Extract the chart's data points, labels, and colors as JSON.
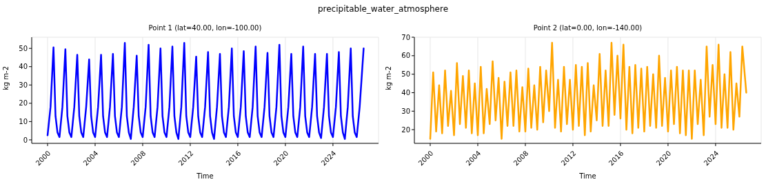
{
  "chart_data": [
    {
      "type": "line",
      "title": "Point 1 (lat=40.00, lon=-100.00)",
      "annotations": [
        "precipitable_water_atmosphere"
      ],
      "xlabel": "Time",
      "ylabel": "kg m-2",
      "grid": true,
      "marker": "none",
      "line_style": "solid",
      "xlim": [
        "1998-09",
        "2027-11"
      ],
      "xticks": [
        "2000",
        "2004",
        "2008",
        "2012",
        "2016",
        "2020",
        "2024"
      ],
      "ylim": [
        -1.9,
        56.1
      ],
      "yticks": [
        0,
        10,
        20,
        30,
        40,
        50
      ],
      "x": [
        "2000-01",
        "2000-04",
        "2000-07",
        "2000-09",
        "2000-11",
        "2001-01",
        "2001-04",
        "2001-07",
        "2001-09",
        "2001-11",
        "2002-01",
        "2002-04",
        "2002-07",
        "2002-09",
        "2002-11",
        "2003-01",
        "2003-04",
        "2003-07",
        "2003-09",
        "2003-11",
        "2004-01",
        "2004-04",
        "2004-07",
        "2004-09",
        "2004-11",
        "2005-01",
        "2005-04",
        "2005-07",
        "2005-09",
        "2005-11",
        "2006-01",
        "2006-04",
        "2006-07",
        "2006-09",
        "2006-11",
        "2007-01",
        "2007-04",
        "2007-07",
        "2007-09",
        "2007-11",
        "2008-01",
        "2008-04",
        "2008-07",
        "2008-09",
        "2008-11",
        "2009-01",
        "2009-04",
        "2009-07",
        "2009-09",
        "2009-11",
        "2010-01",
        "2010-04",
        "2010-07",
        "2010-09",
        "2010-11",
        "2011-01",
        "2011-04",
        "2011-07",
        "2011-09",
        "2011-11",
        "2012-01",
        "2012-04",
        "2012-07",
        "2012-09",
        "2012-11",
        "2013-01",
        "2013-04",
        "2013-07",
        "2013-09",
        "2013-11",
        "2014-01",
        "2014-04",
        "2014-07",
        "2014-09",
        "2014-11",
        "2015-01",
        "2015-04",
        "2015-07",
        "2015-09",
        "2015-11",
        "2016-01",
        "2016-04",
        "2016-07",
        "2016-09",
        "2016-11",
        "2017-01",
        "2017-04",
        "2017-07",
        "2017-09",
        "2017-11",
        "2018-01",
        "2018-04",
        "2018-07",
        "2018-09",
        "2018-11",
        "2019-01",
        "2019-04",
        "2019-07",
        "2019-09",
        "2019-11",
        "2020-01",
        "2020-04",
        "2020-07",
        "2020-09",
        "2020-11",
        "2021-01",
        "2021-04",
        "2021-07",
        "2021-09",
        "2021-11",
        "2022-01",
        "2022-04",
        "2022-07",
        "2022-09",
        "2022-11",
        "2023-01",
        "2023-04",
        "2023-07",
        "2023-09",
        "2023-11",
        "2024-01",
        "2024-04",
        "2024-07",
        "2024-09",
        "2024-11",
        "2025-01",
        "2025-04",
        "2025-07",
        "2025-09",
        "2025-11",
        "2026-01",
        "2026-04",
        "2026-08"
      ],
      "series": [
        {
          "color": "#0000ff",
          "values": [
            2.5,
            18,
            50.5,
            13,
            4,
            1.5,
            18,
            49.5,
            13,
            4,
            1.5,
            18,
            46.5,
            13,
            4,
            1.5,
            18,
            44,
            13,
            4,
            1.5,
            18,
            46.5,
            13,
            4,
            1.5,
            18,
            47,
            13,
            4,
            1.5,
            18,
            53,
            13,
            4,
            0.5,
            18,
            46,
            13,
            4,
            1.5,
            18,
            52,
            13,
            4,
            1.5,
            18,
            50,
            13,
            4,
            1.5,
            18,
            51,
            13,
            4,
            0.5,
            18,
            53,
            13,
            4,
            1.5,
            18,
            45.5,
            13,
            4,
            1.5,
            18,
            48,
            13,
            4,
            0.5,
            18,
            47,
            13,
            4,
            1.5,
            18,
            50,
            13,
            4,
            1.5,
            18,
            48.5,
            13,
            4,
            1.5,
            18,
            51,
            13,
            4,
            1.5,
            18,
            47.5,
            13,
            4,
            1.5,
            18,
            52,
            13,
            4,
            1.5,
            18,
            47,
            13,
            4,
            1.5,
            18,
            51,
            13,
            4,
            1.5,
            18,
            47,
            13,
            4,
            1,
            18,
            47,
            13,
            4,
            1.5,
            18,
            48,
            13,
            4,
            0.5,
            18,
            50,
            13,
            4,
            1.5,
            18,
            50
          ]
        }
      ]
    },
    {
      "type": "line",
      "title": "Point 2 (lat=0.00, lon=-140.00)",
      "xlabel": "Time",
      "ylabel": "kg m-2",
      "grid": true,
      "marker": "none",
      "line_style": "solid",
      "xlim": [
        "1998-09",
        "2027-11"
      ],
      "xticks": [
        "2000",
        "2004",
        "2008",
        "2012",
        "2016",
        "2020",
        "2024"
      ],
      "ylim": [
        12.6,
        70
      ],
      "yticks": [
        20,
        30,
        40,
        50,
        60,
        70
      ],
      "x": [
        "2000-01",
        "2000-04",
        "2000-07",
        "2000-10",
        "2001-01",
        "2001-04",
        "2001-07",
        "2001-10",
        "2002-01",
        "2002-04",
        "2002-07",
        "2002-10",
        "2003-01",
        "2003-04",
        "2003-07",
        "2003-10",
        "2004-01",
        "2004-04",
        "2004-07",
        "2004-10",
        "2005-01",
        "2005-04",
        "2005-07",
        "2005-10",
        "2006-01",
        "2006-04",
        "2006-07",
        "2006-10",
        "2007-01",
        "2007-04",
        "2007-07",
        "2007-10",
        "2008-01",
        "2008-04",
        "2008-07",
        "2008-10",
        "2009-01",
        "2009-04",
        "2009-07",
        "2009-10",
        "2010-01",
        "2010-04",
        "2010-07",
        "2010-10",
        "2011-01",
        "2011-04",
        "2011-07",
        "2011-10",
        "2012-01",
        "2012-04",
        "2012-07",
        "2012-10",
        "2013-01",
        "2013-04",
        "2013-07",
        "2013-10",
        "2014-01",
        "2014-04",
        "2014-07",
        "2014-10",
        "2015-01",
        "2015-04",
        "2015-07",
        "2015-10",
        "2016-01",
        "2016-04",
        "2016-07",
        "2016-10",
        "2017-01",
        "2017-04",
        "2017-07",
        "2017-10",
        "2018-01",
        "2018-04",
        "2018-07",
        "2018-10",
        "2019-01",
        "2019-04",
        "2019-07",
        "2019-10",
        "2020-01",
        "2020-04",
        "2020-07",
        "2020-10",
        "2021-01",
        "2021-04",
        "2021-07",
        "2021-10",
        "2022-01",
        "2022-04",
        "2022-07",
        "2022-10",
        "2023-01",
        "2023-04",
        "2023-07",
        "2023-10",
        "2024-01",
        "2024-04",
        "2024-07",
        "2024-10",
        "2025-01",
        "2025-04",
        "2025-07",
        "2025-10",
        "2026-01",
        "2026-04",
        "2026-08"
      ],
      "series": [
        {
          "color": "#ffa500",
          "values": [
            15,
            51,
            19,
            44,
            18,
            52,
            22,
            41,
            17,
            56,
            23,
            49,
            21,
            52,
            18,
            45,
            17,
            54,
            18,
            42,
            23,
            57,
            25,
            48,
            15,
            46,
            22,
            51,
            22,
            52,
            19,
            43,
            19,
            53,
            21,
            44,
            20,
            54,
            24,
            52,
            30,
            67,
            21,
            47,
            19,
            54,
            23,
            47,
            20,
            55,
            22,
            54,
            17,
            56,
            19,
            44,
            25,
            61,
            22,
            52,
            22,
            67,
            28,
            60,
            26,
            66,
            20,
            54,
            18,
            55,
            21,
            53,
            19,
            54,
            22,
            50,
            21,
            60,
            22,
            48,
            19,
            52,
            23,
            54,
            18,
            52,
            17,
            52,
            15,
            52,
            23,
            47,
            17,
            65,
            27,
            55,
            23,
            66,
            21,
            50,
            21,
            62,
            20,
            45,
            27,
            65,
            40
          ]
        }
      ]
    }
  ]
}
